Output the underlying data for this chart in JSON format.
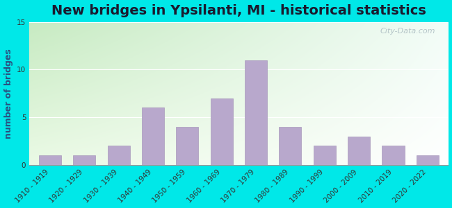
{
  "title": "New bridges in Ypsilanti, MI - historical statistics",
  "ylabel": "number of bridges",
  "categories": [
    "1910 - 1919",
    "1920 - 1929",
    "1930 - 1939",
    "1940 - 1949",
    "1950 - 1959",
    "1960 - 1969",
    "1970 - 1979",
    "1980 - 1989",
    "1990 - 1999",
    "2000 - 2009",
    "2010 - 2019",
    "2020 - 2022"
  ],
  "values": [
    1,
    1,
    2,
    6,
    4,
    7,
    11,
    4,
    2,
    3,
    2,
    1
  ],
  "bar_color": "#b8a8cc",
  "bar_edge_color": "#a898bb",
  "ylim": [
    0,
    15
  ],
  "yticks": [
    0,
    5,
    10,
    15
  ],
  "outer_bg": "#00e8e8",
  "grad_color_topleft": "#c8e8c0",
  "grad_color_right": "#f0faf8",
  "grad_color_bottom": "#ffffff",
  "title_fontsize": 14,
  "ylabel_fontsize": 9,
  "tick_fontsize": 7.5,
  "watermark_text": "City-Data.com",
  "watermark_color": "#aabbc0"
}
